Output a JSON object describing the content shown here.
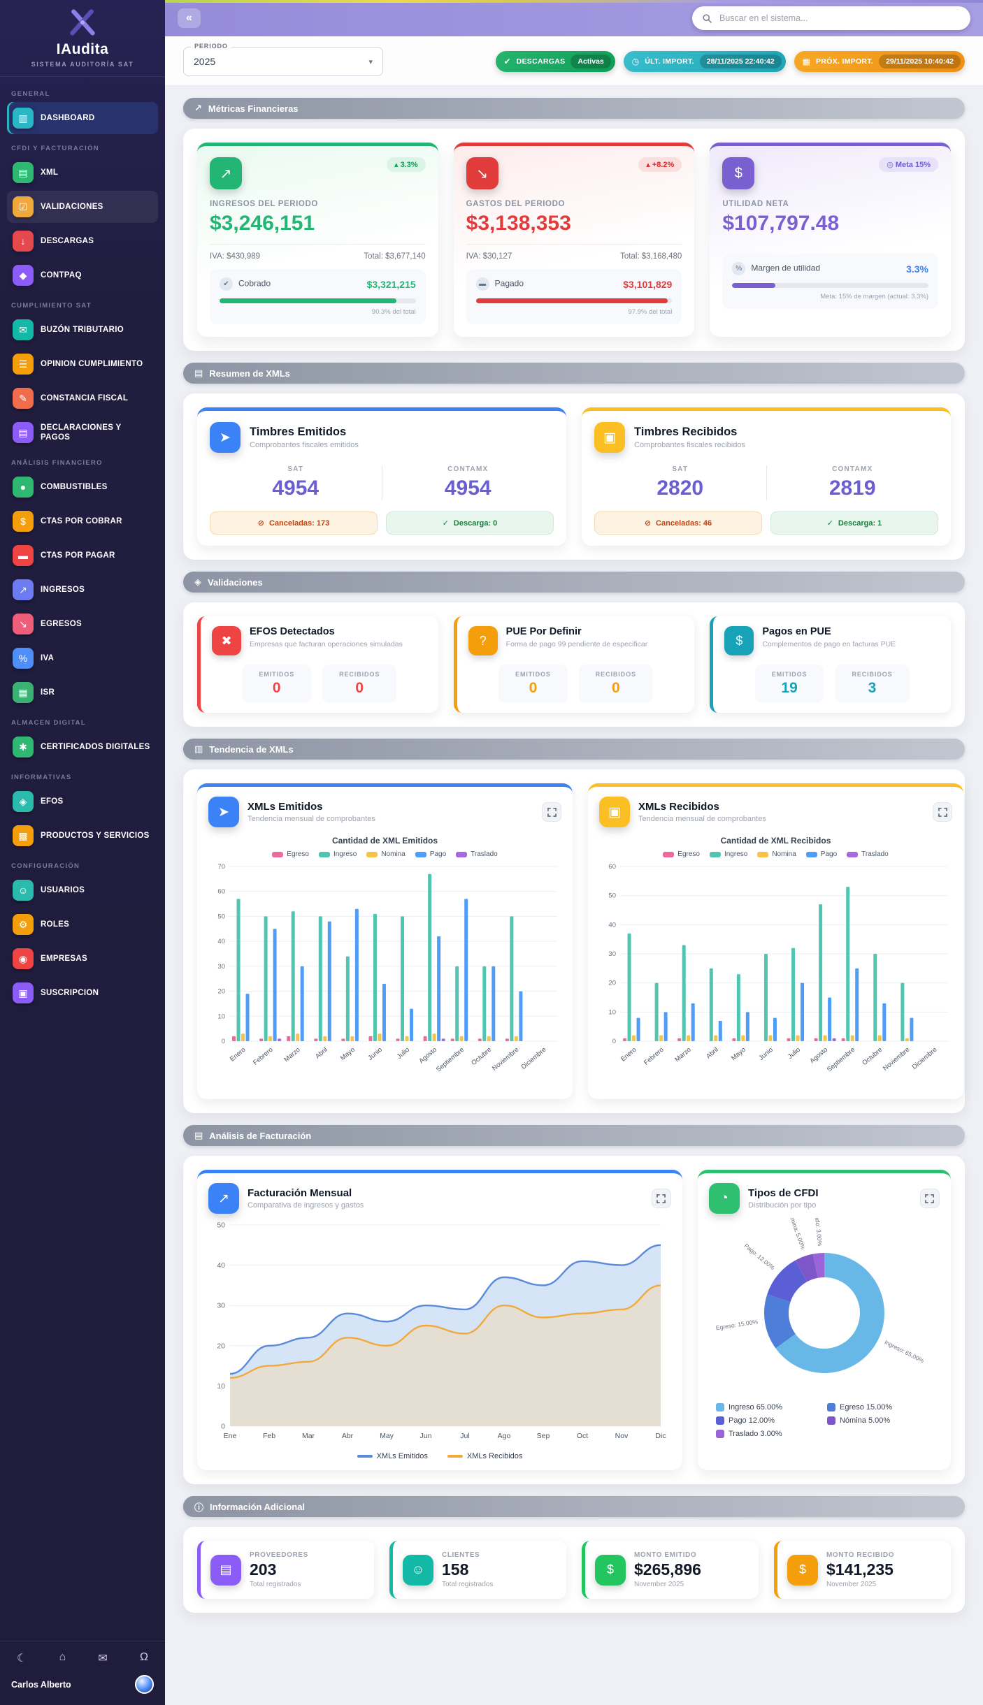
{
  "app": {
    "collapse_icon": "«",
    "search_placeholder": "Buscar en el sistema..."
  },
  "icons": {
    "caret_down": "▾",
    "cancel": "⊘",
    "shield": "✓"
  },
  "sidebar": {
    "logo_title": "IAudita",
    "logo_subtitle": "SISTEMA AUDITORÍA SAT",
    "user_name": "Carlos Alberto",
    "footer_icons": [
      {
        "name": "moon-icon",
        "glyph": "☾"
      },
      {
        "name": "home-icon",
        "glyph": "⌂"
      },
      {
        "name": "chat-icon",
        "glyph": "✉"
      },
      {
        "name": "bell-icon",
        "glyph": "Ω"
      }
    ],
    "sections": [
      {
        "label": "GENERAL",
        "items": [
          {
            "label": "DASHBOARD",
            "icon": "dashboard-icon",
            "glyph": "▥",
            "color": "#29b6c5",
            "active": true
          }
        ]
      },
      {
        "label": "CFDI Y FACTURACIÓN",
        "items": [
          {
            "label": "XML",
            "icon": "xml-document-icon",
            "glyph": "▤",
            "color": "#2eb872"
          },
          {
            "label": "VALIDACIONES",
            "icon": "validations-icon",
            "glyph": "☑",
            "color": "#f0a73c",
            "highlight": true
          },
          {
            "label": "DESCARGAS",
            "icon": "download-icon",
            "glyph": "↓",
            "color": "#e5484d"
          },
          {
            "label": "CONTPAQ",
            "icon": "contpaq-icon",
            "glyph": "◆",
            "color": "#8b5cf6"
          }
        ]
      },
      {
        "label": "CUMPLIMIENTO SAT",
        "items": [
          {
            "label": "BUZÓN TRIBUTARIO",
            "icon": "mailbox-icon",
            "glyph": "✉",
            "color": "#14b8a6"
          },
          {
            "label": "OPINION CUMPLIMIENTO",
            "icon": "list-icon",
            "glyph": "☰",
            "color": "#f59e0b"
          },
          {
            "label": "CONSTANCIA FISCAL",
            "icon": "pencil-doc-icon",
            "glyph": "✎",
            "color": "#ef6c4d"
          },
          {
            "label": "DECLARACIONES Y PAGOS",
            "icon": "declarations-icon",
            "glyph": "▤",
            "color": "#8b5cf6"
          }
        ]
      },
      {
        "label": "ANÁLISIS FINANCIERO",
        "items": [
          {
            "label": "COMBUSTIBLES",
            "icon": "fuel-icon",
            "glyph": "●",
            "color": "#2eb872"
          },
          {
            "label": "CTAS POR COBRAR",
            "icon": "receivable-icon",
            "glyph": "$",
            "color": "#f59e0b"
          },
          {
            "label": "CTAS POR PAGAR",
            "icon": "payable-icon",
            "glyph": "▬",
            "color": "#ef4444"
          },
          {
            "label": "INGRESOS",
            "icon": "income-icon",
            "glyph": "↗",
            "color": "#6c7bf0"
          },
          {
            "label": "EGRESOS",
            "icon": "expense-icon",
            "glyph": "↘",
            "color": "#ee5d7a"
          },
          {
            "label": "IVA",
            "icon": "iva-icon",
            "glyph": "%",
            "color": "#4f8df7"
          },
          {
            "label": "ISR",
            "icon": "isr-icon",
            "glyph": "▦",
            "color": "#3bb273"
          }
        ]
      },
      {
        "label": "ALMACEN DIGITAL",
        "items": [
          {
            "label": "CERTIFICADOS DIGITALES",
            "icon": "certificate-icon",
            "glyph": "✱",
            "color": "#2eb872"
          }
        ]
      },
      {
        "label": "INFORMATIVAS",
        "items": [
          {
            "label": "EFOS",
            "icon": "shield-icon",
            "glyph": "◈",
            "color": "#2bbbad"
          },
          {
            "label": "PRODUCTOS Y SERVICIOS",
            "icon": "products-icon",
            "glyph": "▩",
            "color": "#f59e0b"
          }
        ]
      },
      {
        "label": "CONFIGURACIÓN",
        "items": [
          {
            "label": "USUARIOS",
            "icon": "users-icon",
            "glyph": "☺",
            "color": "#2bbbad"
          },
          {
            "label": "ROLES",
            "icon": "key-icon",
            "glyph": "⚙",
            "color": "#f59e0b"
          },
          {
            "label": "EMPRESAS",
            "icon": "company-icon",
            "glyph": "◉",
            "color": "#ef4444"
          },
          {
            "label": "SUSCRIPCION",
            "icon": "subscription-icon",
            "glyph": "▣",
            "color": "#8b5cf6"
          }
        ]
      }
    ]
  },
  "toolbar": {
    "period_label": "PERIODO",
    "period_value": "2025",
    "badges": [
      {
        "glyph": "✔",
        "label": "DESCARGAS",
        "value": "Activas"
      },
      {
        "glyph": "◷",
        "label": "ÚLT. IMPORT.",
        "value": "28/11/2025 22:40:42"
      },
      {
        "glyph": "▦",
        "label": "PRÓX. IMPORT.",
        "value": "29/11/2025 10:40:42"
      }
    ]
  },
  "section_headers": {
    "metricas": {
      "glyph": "↗",
      "label": "Métricas Financieras"
    },
    "resumen": {
      "glyph": "▤",
      "label": "Resumen de XMLs"
    },
    "validaciones": {
      "glyph": "◈",
      "label": "Validaciones"
    },
    "tendencia": {
      "glyph": "▥",
      "label": "Tendencia de XMLs"
    },
    "analisis": {
      "glyph": "▤",
      "label": "Análisis de Facturación"
    },
    "info": {
      "glyph": "ⓘ",
      "label": "Información Adicional"
    }
  },
  "metrics": {
    "ingresos": {
      "accent": "#22b573",
      "icon_glyph": "↗",
      "badge": "▴ 3.3%",
      "title": "INGRESOS DEL PERIODO",
      "value": "$3,246,151",
      "iva": "IVA: $430,989",
      "total": "Total: $3,677,140",
      "sub_icon": "✔",
      "sub_label": "Cobrado",
      "sub_value": "$3,321,215",
      "progress_pct": 90.3,
      "progress_label": "90.3% del total"
    },
    "gastos": {
      "accent": "#e23b3b",
      "icon_glyph": "↘",
      "badge": "▴ +8.2%",
      "title": "GASTOS DEL PERIODO",
      "value": "$3,138,353",
      "iva": "IVA: $30,127",
      "total": "Total: $3,168,480",
      "sub_icon": "▬",
      "sub_label": "Pagado",
      "sub_value": "$3,101,829",
      "progress_pct": 97.9,
      "progress_label": "97.9% del total"
    },
    "utilidad": {
      "accent": "#7a5fd0",
      "icon_glyph": "$",
      "badge": "◎ Meta 15%",
      "title": "UTILIDAD NETA",
      "value": "$107,797.48",
      "sub_icon": "%",
      "sub_label": "Margen de utilidad",
      "sub_value": "3.3%",
      "progress_pct": 22,
      "progress_label": "Meta: 15% de margen (actual: 3.3%)"
    }
  },
  "xml_summary": {
    "emitidos": {
      "accent": "#3b82f6",
      "icon_glyph": "➤",
      "title": "Timbres Emitidos",
      "subtitle": "Comprobantes fiscales emitidos",
      "col1_label": "SAT",
      "col1_value": "4954",
      "col2_label": "CONTAMX",
      "col2_value": "4954",
      "canceladas": "Canceladas: 173",
      "descarga": "Descarga: 0"
    },
    "recibidos": {
      "accent": "#fbbf24",
      "icon_glyph": "▣",
      "title": "Timbres Recibidos",
      "subtitle": "Comprobantes fiscales recibidos",
      "col1_label": "SAT",
      "col1_value": "2820",
      "col2_label": "CONTAMX",
      "col2_value": "2819",
      "canceladas": "Canceladas: 46",
      "descarga": "Descarga: 1"
    }
  },
  "validations": [
    {
      "accent": "#ef4444",
      "icon_glyph": "✖",
      "title": "EFOS Detectados",
      "subtitle": "Empresas que facturan operaciones simuladas",
      "emitidos_label": "EMITIDOS",
      "emitidos_value": "0",
      "recibidos_label": "RECIBIDOS",
      "recibidos_value": "0"
    },
    {
      "accent": "#f59e0b",
      "icon_glyph": "?",
      "title": "PUE Por Definir",
      "subtitle": "Forma de pago 99 pendiente de especificar",
      "emitidos_label": "EMITIDOS",
      "emitidos_value": "0",
      "recibidos_label": "RECIBIDOS",
      "recibidos_value": "0"
    },
    {
      "accent": "#17a2b8",
      "icon_glyph": "$",
      "title": "Pagos en PUE",
      "subtitle": "Complementos de pago en facturas PUE",
      "emitidos_label": "EMITIDOS",
      "emitidos_value": "19",
      "recibidos_label": "RECIBIDOS",
      "recibidos_value": "3"
    }
  ],
  "tendencia": {
    "emitidos": {
      "accent": "#3b82f6",
      "icon_glyph": "➤",
      "title": "XMLs Emitidos",
      "subtitle": "Tendencia mensual de comprobantes"
    },
    "recibidos": {
      "accent": "#fbbf24",
      "icon_glyph": "▣",
      "title": "XMLs Recibidos",
      "subtitle": "Tendencia mensual de comprobantes"
    }
  },
  "analisis": {
    "facturacion": {
      "accent": "#3b82f6",
      "icon_glyph": "↗",
      "title": "Facturación Mensual",
      "subtitle": "Comparativa de ingresos y gastos"
    },
    "tipos": {
      "accent": "#2fbf71",
      "icon_glyph": "◔",
      "title": "Tipos de CFDI",
      "subtitle": "Distribución por tipo"
    }
  },
  "info_cards": [
    {
      "accent": "#8b5cf6",
      "icon": "providers-icon",
      "glyph": "▤",
      "label": "PROVEEDORES",
      "value": "203",
      "sub": "Total registrados"
    },
    {
      "accent": "#14b8a6",
      "icon": "clients-icon",
      "glyph": "☺",
      "label": "CLIENTES",
      "value": "158",
      "sub": "Total registrados"
    },
    {
      "accent": "#22c55e",
      "icon": "money-out-icon",
      "glyph": "$",
      "label": "MONTO EMITIDO",
      "value": "$265,896",
      "sub": "November 2025"
    },
    {
      "accent": "#f59e0b",
      "icon": "money-in-icon",
      "glyph": "$",
      "label": "MONTO RECIBIDO",
      "value": "$141,235",
      "sub": "November 2025"
    }
  ],
  "chart_data": [
    {
      "type": "bar",
      "title": "Cantidad de XML Emitidos",
      "categories": [
        "Enero",
        "Febrero",
        "Marzo",
        "Abril",
        "Mayo",
        "Junio",
        "Julio",
        "Agosto",
        "Septiembre",
        "Octubre",
        "Noviembre",
        "Diciembre"
      ],
      "series": [
        {
          "name": "Egreso",
          "color": "#ec6a9c",
          "values": [
            2,
            1,
            2,
            1,
            1,
            2,
            1,
            2,
            1,
            1,
            1,
            0
          ]
        },
        {
          "name": "Ingreso",
          "color": "#52c5b0",
          "values": [
            57,
            50,
            52,
            50,
            34,
            51,
            50,
            67,
            30,
            30,
            50,
            0
          ]
        },
        {
          "name": "Nomina",
          "color": "#f6c445",
          "values": [
            3,
            2,
            3,
            2,
            2,
            3,
            2,
            3,
            2,
            2,
            2,
            0
          ]
        },
        {
          "name": "Pago",
          "color": "#4f9df7",
          "values": [
            19,
            45,
            30,
            48,
            53,
            23,
            13,
            42,
            57,
            30,
            20,
            0
          ]
        },
        {
          "name": "Traslado",
          "color": "#a868dd",
          "values": [
            0,
            1,
            0,
            0,
            0,
            0,
            0,
            1,
            0,
            0,
            0,
            0
          ]
        }
      ],
      "ylim": [
        0,
        70
      ],
      "ytick_step": 10
    },
    {
      "type": "bar",
      "title": "Cantidad de XML Recibidos",
      "categories": [
        "Enero",
        "Febrero",
        "Marzo",
        "Abril",
        "Mayo",
        "Junio",
        "Julio",
        "Agosto",
        "Septiembre",
        "Octubre",
        "Noviembre",
        "Diciembre"
      ],
      "series": [
        {
          "name": "Egreso",
          "color": "#ec6a9c",
          "values": [
            1,
            0,
            1,
            0,
            1,
            0,
            1,
            1,
            1,
            0,
            0,
            0
          ]
        },
        {
          "name": "Ingreso",
          "color": "#52c5b0",
          "values": [
            37,
            20,
            33,
            25,
            23,
            30,
            32,
            47,
            53,
            30,
            20,
            0
          ]
        },
        {
          "name": "Nomina",
          "color": "#f6c445",
          "values": [
            2,
            2,
            2,
            2,
            2,
            2,
            2,
            2,
            2,
            2,
            1,
            0
          ]
        },
        {
          "name": "Pago",
          "color": "#4f9df7",
          "values": [
            8,
            10,
            13,
            7,
            10,
            8,
            20,
            15,
            25,
            13,
            8,
            0
          ]
        },
        {
          "name": "Traslado",
          "color": "#a868dd",
          "values": [
            0,
            0,
            0,
            0,
            0,
            0,
            0,
            1,
            0,
            0,
            0,
            0
          ]
        }
      ],
      "ylim": [
        0,
        60
      ],
      "ytick_step": 10
    },
    {
      "type": "area",
      "categories": [
        "Ene",
        "Feb",
        "Mar",
        "Abr",
        "May",
        "Jun",
        "Jul",
        "Ago",
        "Sep",
        "Oct",
        "Nov",
        "Dic"
      ],
      "series": [
        {
          "name": "XMLs Emitidos",
          "color": "#5a8bd8",
          "fill": "#cfdff6",
          "values": [
            13,
            20,
            22,
            28,
            26,
            30,
            29,
            37,
            35,
            41,
            40,
            45
          ]
        },
        {
          "name": "XMLs Recibidos",
          "color": "#f2a93c",
          "fill": "#e8decd",
          "values": [
            12,
            15,
            16,
            22,
            20,
            25,
            23,
            30,
            27,
            28,
            29,
            35
          ]
        }
      ],
      "ylim": [
        0,
        50
      ],
      "ytick_step": 10
    },
    {
      "type": "pie",
      "labels": [
        "Ingreso",
        "Egreso",
        "Pago",
        "Nómina",
        "Traslado"
      ],
      "values": [
        65,
        15,
        12,
        5,
        3
      ],
      "colors": [
        "#67b7e7",
        "#4f7ed9",
        "#5b5fd6",
        "#7d56c8",
        "#9b63d8"
      ],
      "legend": [
        "Ingreso 65.00%",
        "Egreso 15.00%",
        "Pago 12.00%",
        "Nómina 5.00%",
        "Traslado 3.00%"
      ],
      "callouts": [
        "Ingreso: 65.00%",
        "Egreso: 15.00%",
        "Pago: 12.00%",
        "Nómina: 5.00%",
        "Traslado: 3.00%"
      ]
    }
  ]
}
